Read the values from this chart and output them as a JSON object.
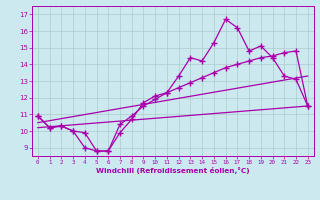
{
  "xlabel": "Windchill (Refroidissement éolien,°C)",
  "xlim": [
    -0.5,
    23.5
  ],
  "ylim": [
    8.5,
    17.5
  ],
  "yticks": [
    9,
    10,
    11,
    12,
    13,
    14,
    15,
    16,
    17
  ],
  "xticks": [
    0,
    1,
    2,
    3,
    4,
    5,
    6,
    7,
    8,
    9,
    10,
    11,
    12,
    13,
    14,
    15,
    16,
    17,
    18,
    19,
    20,
    21,
    22,
    23
  ],
  "bg_color": "#cce9f0",
  "line_color": "#aa00aa",
  "grid_color": "#aacccc",
  "line1_x": [
    0,
    1,
    2,
    3,
    4,
    5,
    6,
    7,
    8,
    9,
    10,
    11,
    12,
    13,
    14,
    15,
    16,
    17,
    18,
    19,
    20,
    21,
    22,
    23
  ],
  "line1_y": [
    10.9,
    10.2,
    10.3,
    10.0,
    9.0,
    8.8,
    8.8,
    9.9,
    10.7,
    11.7,
    12.1,
    12.3,
    13.3,
    14.4,
    14.2,
    15.3,
    16.7,
    16.2,
    14.8,
    15.1,
    14.4,
    13.3,
    13.1,
    11.5
  ],
  "line2_x": [
    0,
    1,
    2,
    3,
    4,
    5,
    6,
    7,
    8,
    9,
    10,
    11,
    12,
    13,
    14,
    15,
    16,
    17,
    18,
    19,
    20,
    21,
    22,
    23
  ],
  "line2_y": [
    10.9,
    10.2,
    10.3,
    10.0,
    9.9,
    8.8,
    8.8,
    10.4,
    10.9,
    11.5,
    11.9,
    12.3,
    12.6,
    12.9,
    13.2,
    13.5,
    13.8,
    14.0,
    14.2,
    14.4,
    14.5,
    14.7,
    14.8,
    11.5
  ],
  "line3_x": [
    0,
    23
  ],
  "line3_y": [
    10.5,
    13.3
  ],
  "line4_x": [
    0,
    23
  ],
  "line4_y": [
    10.2,
    11.5
  ]
}
